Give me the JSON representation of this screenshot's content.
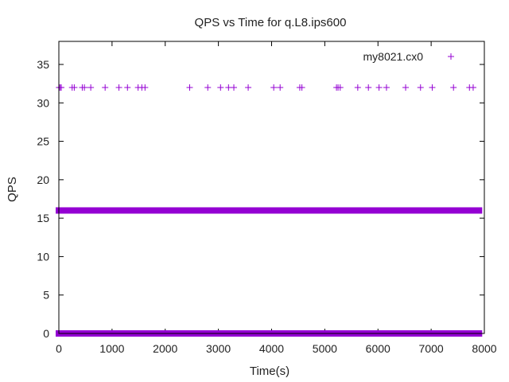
{
  "chart_data": {
    "type": "scatter",
    "title": "QPS vs Time for q.L8.ips600",
    "xlabel": "Time(s)",
    "ylabel": "QPS",
    "xlim": [
      0,
      8000
    ],
    "ylim": [
      0,
      38
    ],
    "x_ticks": [
      "0",
      "1000",
      "2000",
      "3000",
      "4000",
      "5000",
      "6000",
      "7000",
      "8000"
    ],
    "y_ticks": [
      "0",
      "5",
      "10",
      "15",
      "20",
      "25",
      "30",
      "35"
    ],
    "grid": false,
    "legend_position": "top-right",
    "marker": "+",
    "color": "#9400d3",
    "series": [
      {
        "name": "my8021.cx0",
        "bands": [
          {
            "y": 16,
            "x_range": [
              0,
              7900
            ]
          },
          {
            "y": 0,
            "x_range": [
              0,
              7900
            ]
          }
        ],
        "points": [
          {
            "x": 5,
            "y": 32
          },
          {
            "x": 25,
            "y": 32
          },
          {
            "x": 45,
            "y": 32
          },
          {
            "x": 250,
            "y": 32
          },
          {
            "x": 290,
            "y": 32
          },
          {
            "x": 440,
            "y": 32
          },
          {
            "x": 480,
            "y": 32
          },
          {
            "x": 600,
            "y": 32
          },
          {
            "x": 870,
            "y": 32
          },
          {
            "x": 1130,
            "y": 32
          },
          {
            "x": 1290,
            "y": 32
          },
          {
            "x": 1490,
            "y": 32
          },
          {
            "x": 1560,
            "y": 32
          },
          {
            "x": 1620,
            "y": 32
          },
          {
            "x": 2460,
            "y": 32
          },
          {
            "x": 2800,
            "y": 32
          },
          {
            "x": 3040,
            "y": 32
          },
          {
            "x": 3190,
            "y": 32
          },
          {
            "x": 3290,
            "y": 32
          },
          {
            "x": 3560,
            "y": 32
          },
          {
            "x": 4040,
            "y": 32
          },
          {
            "x": 4160,
            "y": 32
          },
          {
            "x": 4530,
            "y": 32
          },
          {
            "x": 4570,
            "y": 32
          },
          {
            "x": 5220,
            "y": 32
          },
          {
            "x": 5250,
            "y": 32
          },
          {
            "x": 5290,
            "y": 32
          },
          {
            "x": 5620,
            "y": 32
          },
          {
            "x": 5820,
            "y": 32
          },
          {
            "x": 6020,
            "y": 32
          },
          {
            "x": 6160,
            "y": 32
          },
          {
            "x": 6520,
            "y": 32
          },
          {
            "x": 6800,
            "y": 32
          },
          {
            "x": 7020,
            "y": 32
          },
          {
            "x": 7420,
            "y": 32
          },
          {
            "x": 7720,
            "y": 32
          },
          {
            "x": 7790,
            "y": 32
          }
        ]
      }
    ]
  }
}
